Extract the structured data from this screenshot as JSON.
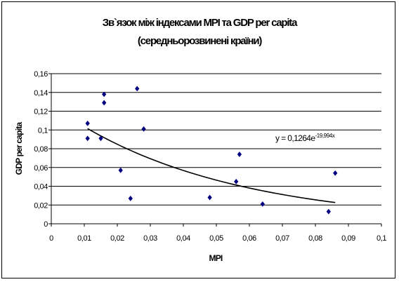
{
  "chart_data": {
    "type": "scatter",
    "title_lines": [
      "Зв`язок між індексами MPI та GDP per capita",
      "(середньорозвинені країни)"
    ],
    "xlabel": "MPI",
    "ylabel": "GDP per capita",
    "xlim": [
      0,
      0.1
    ],
    "ylim": [
      0,
      0.16
    ],
    "x_ticks": [
      "0",
      "0,01",
      "0,02",
      "0,03",
      "0,04",
      "0,05",
      "0,06",
      "0,07",
      "0,08",
      "0,09",
      "0,1"
    ],
    "y_ticks": [
      "0",
      "0,02",
      "0,04",
      "0,06",
      "0,08",
      "0,1",
      "0,12",
      "0,14",
      "0,16"
    ],
    "grid": "horizontal",
    "points": [
      {
        "x": 0.011,
        "y": 0.107
      },
      {
        "x": 0.011,
        "y": 0.091
      },
      {
        "x": 0.015,
        "y": 0.091
      },
      {
        "x": 0.016,
        "y": 0.138
      },
      {
        "x": 0.016,
        "y": 0.129
      },
      {
        "x": 0.021,
        "y": 0.057
      },
      {
        "x": 0.024,
        "y": 0.027
      },
      {
        "x": 0.026,
        "y": 0.144
      },
      {
        "x": 0.028,
        "y": 0.101
      },
      {
        "x": 0.048,
        "y": 0.028
      },
      {
        "x": 0.056,
        "y": 0.045
      },
      {
        "x": 0.057,
        "y": 0.074
      },
      {
        "x": 0.064,
        "y": 0.021
      },
      {
        "x": 0.084,
        "y": 0.013
      },
      {
        "x": 0.086,
        "y": 0.054
      }
    ],
    "trendline": {
      "type": "exponential",
      "a": 0.1264,
      "b": -19.994,
      "x_range": [
        0.011,
        0.086
      ],
      "label_main": "y = 0,1264e",
      "label_exp": "-19,994x"
    },
    "marker_color": "#000080",
    "trend_color": "#000000"
  }
}
